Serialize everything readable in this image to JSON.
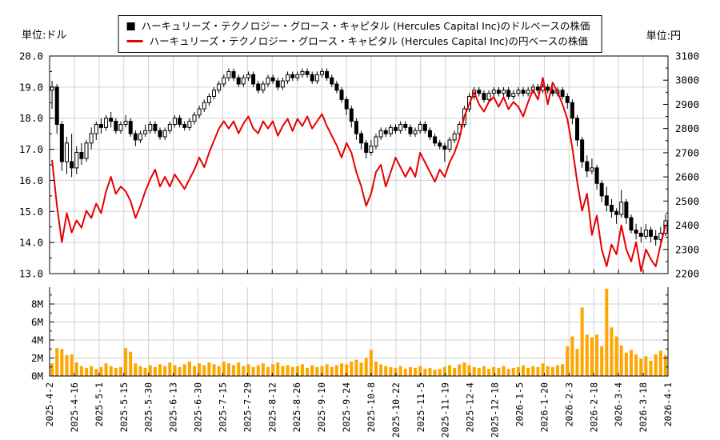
{
  "figure": {
    "unit_left": "単位:ドル",
    "unit_right": "単位:円",
    "legend": [
      {
        "marker": "square",
        "color": "#000000",
        "label": "ハーキュリーズ・テクノロジー・グロース・キャピタル (Hercules Capital Inc)のドルベースの株価"
      },
      {
        "marker": "line",
        "color": "#e60000",
        "label": "ハーキュリーズ・テクノロジー・グロース・キャピタル (Hercules Capital Inc)の円ベースの株価"
      }
    ]
  },
  "colors": {
    "candle_outline": "#000000",
    "candle_up_fill": "#ffffff",
    "candle_down_fill": "#000000",
    "jpy_line": "#e60000",
    "volume_bar": "#ffa500",
    "grid": "#d0d0d0",
    "axis": "#000000"
  },
  "chart_data": {
    "type": "candlestick+line+volume",
    "x_tick_labels": [
      "2025-4-2",
      "2025-4-16",
      "2025-5-1",
      "2025-5-15",
      "2025-5-30",
      "2025-6-13",
      "2025-6-30",
      "2025-7-15",
      "2025-7-29",
      "2025-8-12",
      "2025-8-26",
      "2025-9-10",
      "2025-9-24",
      "2025-10-8",
      "2025-10-22",
      "2025-11-5",
      "2025-11-19",
      "2025-12-4",
      "2025-12-18",
      "2026-1-5",
      "2026-1-20",
      "2026-2-3",
      "2026-2-18",
      "2026-3-4",
      "2026-3-18",
      "2026-4-1"
    ],
    "left_axis": {
      "unit": "ドル",
      "range": [
        13.0,
        20.0
      ],
      "ticks": [
        {
          "v": 20.0,
          "label": "20.0"
        },
        {
          "v": 19.0,
          "label": "19.0"
        },
        {
          "v": 18.0,
          "label": "18.0"
        },
        {
          "v": 17.0,
          "label": "17.0"
        },
        {
          "v": 16.0,
          "label": "16.0"
        },
        {
          "v": 15.0,
          "label": "15.0"
        },
        {
          "v": 14.0,
          "label": "14.0"
        },
        {
          "v": 13.0,
          "label": "13.0"
        }
      ]
    },
    "right_axis": {
      "unit": "円",
      "range": [
        2200,
        3100
      ],
      "ticks": [
        {
          "v": 3100,
          "label": "3100"
        },
        {
          "v": 3000,
          "label": "3000"
        },
        {
          "v": 2900,
          "label": "2900"
        },
        {
          "v": 2800,
          "label": "2800"
        },
        {
          "v": 2700,
          "label": "2700"
        },
        {
          "v": 2600,
          "label": "2600"
        },
        {
          "v": 2500,
          "label": "2500"
        },
        {
          "v": 2400,
          "label": "2400"
        },
        {
          "v": 2300,
          "label": "2300"
        },
        {
          "v": 2200,
          "label": "2200"
        }
      ]
    },
    "volume_axis": {
      "range_m": [
        0,
        9.9
      ],
      "ticks": [
        {
          "v": 8,
          "label": "8M"
        },
        {
          "v": 6,
          "label": "6M"
        },
        {
          "v": 4,
          "label": "4M"
        },
        {
          "v": 2,
          "label": "2M"
        },
        {
          "v": 0,
          "label": "0M"
        }
      ]
    },
    "series": [
      {
        "role": "usd_candles",
        "type": "candlestick",
        "ohlc": [
          [
            18.9,
            19.2,
            18.3,
            19.0
          ],
          [
            19.0,
            19.1,
            17.5,
            17.8
          ],
          [
            17.8,
            17.9,
            16.3,
            16.6
          ],
          [
            16.6,
            17.4,
            16.2,
            17.2
          ],
          [
            16.6,
            17.5,
            16.1,
            16.4
          ],
          [
            16.4,
            17.1,
            16.2,
            16.9
          ],
          [
            16.9,
            17.2,
            16.5,
            16.7
          ],
          [
            16.7,
            17.3,
            16.6,
            17.2
          ],
          [
            17.2,
            17.7,
            17.0,
            17.5
          ],
          [
            17.5,
            17.9,
            17.3,
            17.8
          ],
          [
            17.8,
            18.0,
            17.5,
            17.7
          ],
          [
            17.7,
            18.1,
            17.6,
            18.0
          ],
          [
            18.0,
            18.2,
            17.7,
            17.9
          ],
          [
            17.9,
            18.0,
            17.5,
            17.6
          ],
          [
            17.6,
            17.9,
            17.5,
            17.8
          ],
          [
            17.8,
            18.1,
            17.7,
            17.9
          ],
          [
            17.9,
            18.0,
            17.4,
            17.5
          ],
          [
            17.5,
            17.6,
            17.1,
            17.3
          ],
          [
            17.3,
            17.6,
            17.2,
            17.5
          ],
          [
            17.5,
            17.8,
            17.4,
            17.6
          ],
          [
            17.6,
            17.9,
            17.5,
            17.8
          ],
          [
            17.8,
            17.9,
            17.5,
            17.6
          ],
          [
            17.6,
            17.7,
            17.3,
            17.4
          ],
          [
            17.4,
            17.7,
            17.3,
            17.6
          ],
          [
            17.6,
            17.9,
            17.5,
            17.8
          ],
          [
            17.8,
            18.1,
            17.7,
            18.0
          ],
          [
            18.0,
            18.1,
            17.7,
            17.8
          ],
          [
            17.8,
            17.9,
            17.6,
            17.7
          ],
          [
            17.7,
            18.0,
            17.6,
            17.9
          ],
          [
            17.9,
            18.2,
            17.8,
            18.1
          ],
          [
            18.1,
            18.4,
            18.0,
            18.3
          ],
          [
            18.3,
            18.6,
            18.2,
            18.5
          ],
          [
            18.5,
            18.8,
            18.4,
            18.7
          ],
          [
            18.7,
            19.0,
            18.6,
            18.9
          ],
          [
            18.9,
            19.2,
            18.8,
            19.1
          ],
          [
            19.1,
            19.4,
            19.0,
            19.3
          ],
          [
            19.3,
            19.6,
            19.2,
            19.5
          ],
          [
            19.5,
            19.6,
            19.2,
            19.3
          ],
          [
            19.3,
            19.4,
            19.0,
            19.1
          ],
          [
            19.1,
            19.4,
            19.0,
            19.3
          ],
          [
            19.3,
            19.5,
            19.2,
            19.4
          ],
          [
            19.4,
            19.5,
            19.0,
            19.1
          ],
          [
            19.1,
            19.2,
            18.8,
            18.9
          ],
          [
            18.9,
            19.2,
            18.8,
            19.1
          ],
          [
            19.1,
            19.4,
            19.0,
            19.3
          ],
          [
            19.3,
            19.4,
            19.1,
            19.2
          ],
          [
            19.2,
            19.3,
            18.9,
            19.0
          ],
          [
            19.0,
            19.3,
            18.9,
            19.2
          ],
          [
            19.2,
            19.5,
            19.1,
            19.4
          ],
          [
            19.4,
            19.5,
            19.2,
            19.3
          ],
          [
            19.3,
            19.5,
            19.2,
            19.4
          ],
          [
            19.4,
            19.6,
            19.3,
            19.5
          ],
          [
            19.5,
            19.6,
            19.3,
            19.4
          ],
          [
            19.4,
            19.5,
            19.1,
            19.2
          ],
          [
            19.2,
            19.5,
            19.1,
            19.4
          ],
          [
            19.4,
            19.6,
            19.3,
            19.5
          ],
          [
            19.5,
            19.6,
            19.2,
            19.3
          ],
          [
            19.3,
            19.4,
            19.0,
            19.1
          ],
          [
            19.1,
            19.2,
            18.8,
            18.9
          ],
          [
            18.9,
            19.0,
            18.5,
            18.6
          ],
          [
            18.6,
            18.7,
            18.1,
            18.3
          ],
          [
            18.3,
            18.4,
            17.7,
            17.9
          ],
          [
            17.9,
            18.0,
            17.3,
            17.5
          ],
          [
            17.5,
            17.6,
            17.0,
            17.2
          ],
          [
            17.2,
            17.3,
            16.7,
            16.9
          ],
          [
            16.9,
            17.3,
            16.8,
            17.1
          ],
          [
            17.1,
            17.5,
            17.0,
            17.4
          ],
          [
            17.4,
            17.7,
            17.3,
            17.6
          ],
          [
            17.6,
            17.7,
            17.4,
            17.5
          ],
          [
            17.5,
            17.8,
            17.4,
            17.7
          ],
          [
            17.7,
            17.8,
            17.5,
            17.6
          ],
          [
            17.6,
            17.9,
            17.5,
            17.8
          ],
          [
            17.8,
            17.9,
            17.6,
            17.7
          ],
          [
            17.7,
            17.8,
            17.4,
            17.5
          ],
          [
            17.5,
            17.7,
            17.4,
            17.6
          ],
          [
            17.6,
            17.9,
            17.5,
            17.8
          ],
          [
            17.8,
            17.9,
            17.5,
            17.6
          ],
          [
            17.6,
            17.7,
            17.3,
            17.4
          ],
          [
            17.4,
            17.5,
            17.1,
            17.2
          ],
          [
            17.2,
            17.3,
            17.0,
            17.1
          ],
          [
            17.1,
            17.2,
            16.6,
            17.0
          ],
          [
            17.0,
            17.4,
            16.9,
            17.3
          ],
          [
            17.3,
            17.6,
            17.2,
            17.5
          ],
          [
            17.5,
            17.9,
            17.4,
            17.8
          ],
          [
            17.8,
            18.4,
            17.7,
            18.3
          ],
          [
            18.3,
            18.8,
            18.2,
            18.7
          ],
          [
            18.7,
            19.0,
            18.6,
            18.9
          ],
          [
            18.9,
            19.0,
            18.7,
            18.8
          ],
          [
            18.8,
            18.9,
            18.5,
            18.6
          ],
          [
            18.6,
            18.9,
            18.5,
            18.8
          ],
          [
            18.8,
            19.0,
            18.7,
            18.9
          ],
          [
            18.9,
            19.0,
            18.7,
            18.8
          ],
          [
            18.8,
            19.0,
            18.7,
            18.9
          ],
          [
            18.9,
            19.0,
            18.6,
            18.7
          ],
          [
            18.7,
            18.9,
            18.6,
            18.8
          ],
          [
            18.8,
            19.0,
            18.7,
            18.9
          ],
          [
            18.9,
            19.0,
            18.7,
            18.8
          ],
          [
            18.8,
            19.0,
            18.7,
            18.9
          ],
          [
            18.9,
            19.1,
            18.8,
            19.0
          ],
          [
            19.0,
            19.1,
            18.8,
            18.9
          ],
          [
            18.9,
            19.1,
            18.8,
            19.0
          ],
          [
            19.0,
            19.1,
            18.8,
            18.9
          ],
          [
            18.9,
            19.0,
            18.7,
            18.8
          ],
          [
            18.8,
            19.0,
            18.7,
            18.9
          ],
          [
            18.9,
            19.0,
            18.6,
            18.7
          ],
          [
            18.7,
            18.8,
            18.3,
            18.5
          ],
          [
            18.5,
            18.6,
            17.8,
            18.0
          ],
          [
            18.0,
            18.1,
            17.1,
            17.3
          ],
          [
            17.3,
            17.4,
            16.4,
            16.6
          ],
          [
            16.6,
            16.8,
            16.1,
            16.3
          ],
          [
            16.3,
            16.7,
            16.2,
            16.4
          ],
          [
            16.4,
            16.5,
            15.7,
            15.9
          ],
          [
            15.9,
            16.0,
            15.3,
            15.5
          ],
          [
            15.5,
            15.8,
            15.0,
            15.2
          ],
          [
            15.2,
            15.4,
            14.8,
            15.0
          ],
          [
            15.0,
            15.1,
            14.6,
            14.9
          ],
          [
            14.9,
            15.7,
            14.8,
            15.3
          ],
          [
            15.3,
            15.4,
            14.6,
            14.8
          ],
          [
            14.8,
            14.9,
            14.3,
            14.4
          ],
          [
            14.4,
            14.6,
            14.1,
            14.3
          ],
          [
            14.3,
            14.5,
            14.0,
            14.2
          ],
          [
            14.2,
            14.6,
            14.1,
            14.4
          ],
          [
            14.4,
            14.5,
            14.0,
            14.2
          ],
          [
            14.2,
            14.4,
            13.9,
            14.1
          ],
          [
            14.1,
            14.5,
            14.0,
            14.3
          ],
          [
            14.3,
            14.9,
            14.2,
            14.7
          ]
        ]
      },
      {
        "role": "jpy_line",
        "type": "line",
        "values": [
          2670,
          2480,
          2330,
          2450,
          2370,
          2420,
          2390,
          2460,
          2430,
          2490,
          2450,
          2540,
          2600,
          2530,
          2560,
          2540,
          2500,
          2430,
          2480,
          2540,
          2590,
          2630,
          2560,
          2600,
          2560,
          2610,
          2580,
          2550,
          2590,
          2630,
          2680,
          2640,
          2700,
          2750,
          2800,
          2830,
          2800,
          2830,
          2780,
          2820,
          2850,
          2800,
          2780,
          2830,
          2800,
          2830,
          2770,
          2810,
          2840,
          2790,
          2840,
          2810,
          2850,
          2800,
          2830,
          2860,
          2810,
          2770,
          2730,
          2680,
          2740,
          2700,
          2620,
          2560,
          2480,
          2530,
          2620,
          2650,
          2560,
          2620,
          2680,
          2640,
          2600,
          2640,
          2600,
          2700,
          2660,
          2620,
          2580,
          2630,
          2600,
          2660,
          2700,
          2760,
          2850,
          2900,
          2950,
          2900,
          2870,
          2910,
          2930,
          2890,
          2930,
          2880,
          2910,
          2890,
          2850,
          2910,
          2960,
          2920,
          3010,
          2900,
          2990,
          2950,
          2900,
          2840,
          2720,
          2580,
          2460,
          2530,
          2360,
          2440,
          2300,
          2230,
          2320,
          2280,
          2400,
          2300,
          2250,
          2330,
          2210,
          2300,
          2260,
          2230,
          2320,
          2400
        ]
      },
      {
        "role": "volume",
        "type": "bar",
        "values_m": [
          1.4,
          3.1,
          3.0,
          2.3,
          2.4,
          1.5,
          1.1,
          0.9,
          1.1,
          0.8,
          1.0,
          1.4,
          1.1,
          0.9,
          1.0,
          3.1,
          2.7,
          1.4,
          1.1,
          0.9,
          1.2,
          1.0,
          1.3,
          1.1,
          1.5,
          1.2,
          1.0,
          1.3,
          1.6,
          1.1,
          1.4,
          1.2,
          1.5,
          1.3,
          1.1,
          1.6,
          1.4,
          1.2,
          1.5,
          1.1,
          1.3,
          1.0,
          1.2,
          1.4,
          1.0,
          1.3,
          1.5,
          1.1,
          1.2,
          1.0,
          1.1,
          1.3,
          0.9,
          1.2,
          1.0,
          1.1,
          1.3,
          1.0,
          1.2,
          1.4,
          1.3,
          1.6,
          1.8,
          1.5,
          2.0,
          2.9,
          1.6,
          1.3,
          1.1,
          1.0,
          0.9,
          1.1,
          0.8,
          1.0,
          0.9,
          1.1,
          0.8,
          0.9,
          0.7,
          0.8,
          1.0,
          1.2,
          0.9,
          1.3,
          1.5,
          1.2,
          1.0,
          0.9,
          1.1,
          0.8,
          1.0,
          0.9,
          1.1,
          0.8,
          0.9,
          1.0,
          1.2,
          0.9,
          1.1,
          1.0,
          1.4,
          1.1,
          1.0,
          1.2,
          1.3,
          3.3,
          4.4,
          3.0,
          7.6,
          4.6,
          4.3,
          4.6,
          3.3,
          9.7,
          5.4,
          4.4,
          3.4,
          2.6,
          2.9,
          2.4,
          1.9,
          2.2,
          1.7,
          2.4,
          2.8,
          2.3
        ]
      }
    ]
  }
}
